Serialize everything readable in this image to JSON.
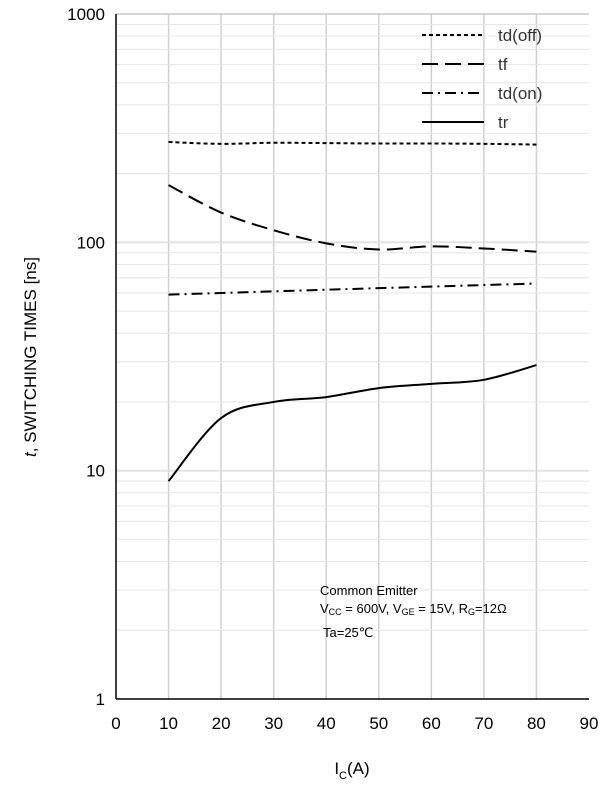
{
  "chart_data": {
    "type": "line",
    "xlabel": "I",
    "xlabel_sub": "C",
    "xlabel_unit": "(A)",
    "ylabel_italic": "t",
    "ylabel": ", SWITCHING TIMES [ns]",
    "xlim": [
      0,
      90
    ],
    "ylim": [
      1,
      1000
    ],
    "yscale": "log",
    "grid": true,
    "legend_position": "top-right",
    "x_ticks": [
      "0",
      "10",
      "20",
      "30",
      "40",
      "50",
      "60",
      "70",
      "80",
      "90"
    ],
    "y_ticks": [
      "1",
      "10",
      "100",
      "1000"
    ],
    "x": [
      10,
      20,
      30,
      40,
      50,
      60,
      70,
      80
    ],
    "series": [
      {
        "name": "td(off)",
        "style": "short-dash",
        "values": [
          275,
          270,
          273,
          272,
          271,
          271,
          270,
          268
        ]
      },
      {
        "name": "tf",
        "style": "long-dash",
        "values": [
          178,
          135,
          113,
          99,
          93,
          96,
          94,
          91
        ]
      },
      {
        "name": "td(on)",
        "style": "dash-dot",
        "values": [
          59,
          60,
          61,
          62,
          63,
          64,
          65,
          66
        ]
      },
      {
        "name": "tr",
        "style": "solid",
        "values": [
          9,
          17,
          20,
          21,
          23,
          24,
          25,
          29
        ]
      }
    ],
    "annotations": {
      "line1": "Common Emitter",
      "line2": {
        "vcc_main": "V",
        "vcc_sub": "CC",
        "vcc_rest": " = 600V, ",
        "vge_main": "V",
        "vge_sub": "GE",
        "vge_rest": " = 15V, ",
        "rg_main": "R",
        "rg_sub": "G",
        "rg_rest": "=12Ω"
      },
      "line3": "Ta=25℃"
    }
  }
}
